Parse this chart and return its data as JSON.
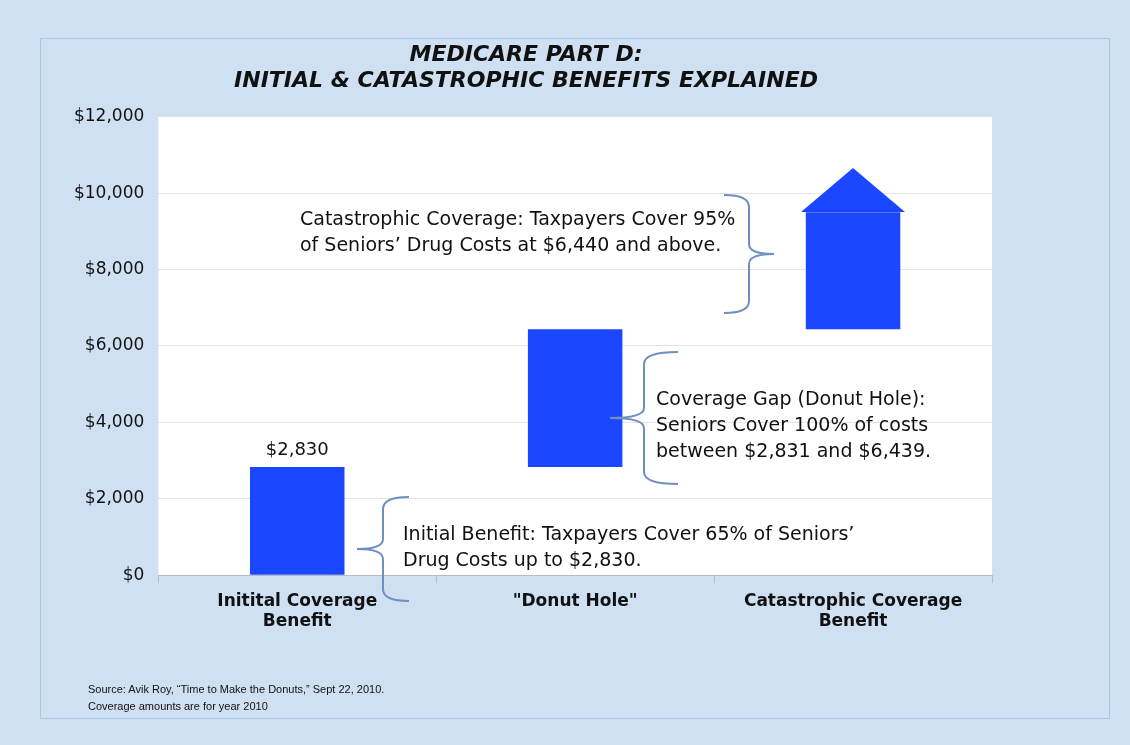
{
  "chart_data": {
    "type": "bar",
    "title": "MEDICARE PART D: INITIAL & CATASTROPHIC BENEFITS EXPLAINED",
    "categories": [
      "Initital Coverage Benefit",
      "\"Donut Hole\"",
      "Catastrophic Coverage Benefit"
    ],
    "values": [
      2830,
      3610,
      3060
    ],
    "base": [
      0,
      2830,
      6440
    ],
    "color": "#1a47ff",
    "value_labels": [
      "$2,830",
      null,
      null
    ],
    "ylim": [
      0,
      12000
    ],
    "yticks": [
      {
        "value": 0,
        "label": "$0"
      },
      {
        "value": 2000,
        "label": "$2,000"
      },
      {
        "value": 4000,
        "label": "$4,000"
      },
      {
        "value": 6000,
        "label": "$6,000"
      },
      {
        "value": 8000,
        "label": "$8,000"
      },
      {
        "value": 10000,
        "label": "$10,000"
      },
      {
        "value": 12000,
        "label": "$12,000"
      }
    ],
    "grid": "y",
    "annotations": [
      "Catastrophic Coverage: Taxpayers Cover 95% of Seniors’ Drug Costs at $6,440 and above.",
      "Coverage Gap (Donut Hole): Seniors Cover 100% of costs between $2,831 and $6,439.",
      "Initial Benefit: Taxpayers Cover 65% of Seniors’ Drug Costs up to $2,830.",
      "Source: Avik Roy, “Time to Make the Donuts,” Sept 22, 2010.",
      "Coverage amounts are for year 2010"
    ]
  }
}
